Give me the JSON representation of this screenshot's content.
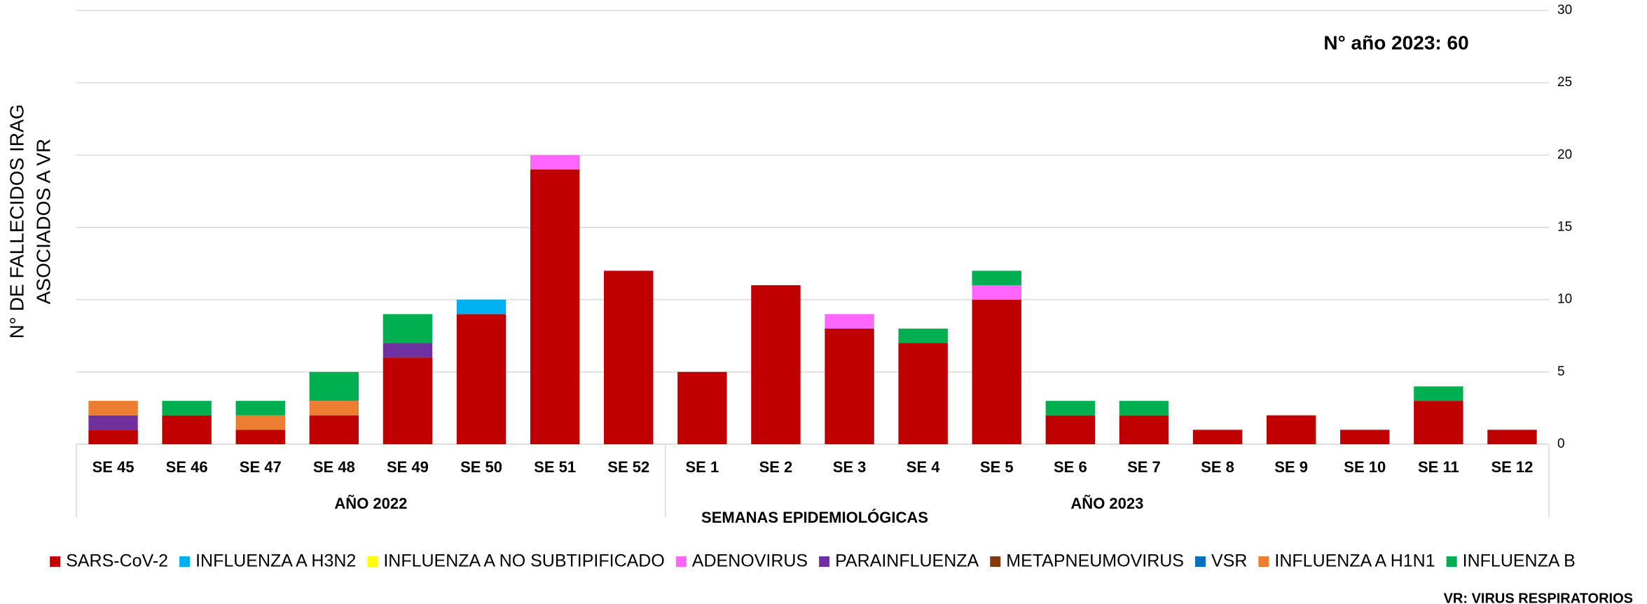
{
  "chart_data": {
    "type": "stacked_bar",
    "y_label": [
      "N° DE FALLECIDOS IRAG",
      "ASOCIADOS A VR"
    ],
    "x_label": "SEMANAS EPIDEMIOLÓGICAS",
    "annotation": "N° año 2023: 60",
    "footnote": "VR: VIRUS RESPIRATORIOS",
    "groups": [
      {
        "label": "AÑO 2022",
        "categories": [
          "SE 45",
          "SE 46",
          "SE 47",
          "SE 48",
          "SE 49",
          "SE 50",
          "SE 51",
          "SE 52"
        ]
      },
      {
        "label": "AÑO 2023",
        "categories": [
          "SE 1",
          "SE 2",
          "SE 3",
          "SE 4",
          "SE 5",
          "SE 6",
          "SE 7",
          "SE 8",
          "SE 9",
          "SE 10",
          "SE 11",
          "SE 12"
        ]
      }
    ],
    "series": [
      {
        "name": "SARS-CoV-2",
        "color": "#c00000",
        "values": [
          1,
          2,
          1,
          2,
          6,
          9,
          19,
          12,
          5,
          11,
          8,
          7,
          10,
          2,
          2,
          1,
          2,
          1,
          3,
          1
        ]
      },
      {
        "name": "INFLUENZA A H3N2",
        "color": "#00b0f0",
        "values": [
          0,
          0,
          0,
          0,
          0,
          1,
          0,
          0,
          0,
          0,
          0,
          0,
          0,
          0,
          0,
          0,
          0,
          0,
          0,
          0
        ]
      },
      {
        "name": "INFLUENZA A NO SUBTIPIFICADO",
        "color": "#ffff00",
        "values": [
          0,
          0,
          0,
          0,
          0,
          0,
          0,
          0,
          0,
          0,
          0,
          0,
          0,
          0,
          0,
          0,
          0,
          0,
          0,
          0
        ]
      },
      {
        "name": "ADENOVIRUS",
        "color": "#ff66ff",
        "values": [
          0,
          0,
          0,
          0,
          0,
          0,
          1,
          0,
          0,
          0,
          1,
          0,
          1,
          0,
          0,
          0,
          0,
          0,
          0,
          0
        ]
      },
      {
        "name": "PARAINFLUENZA",
        "color": "#7030a0",
        "values": [
          1,
          0,
          0,
          0,
          1,
          0,
          0,
          0,
          0,
          0,
          0,
          0,
          0,
          0,
          0,
          0,
          0,
          0,
          0,
          0
        ]
      },
      {
        "name": "METAPNEUMOVIRUS",
        "color": "#843c0c",
        "values": [
          0,
          0,
          0,
          0,
          0,
          0,
          0,
          0,
          0,
          0,
          0,
          0,
          0,
          0,
          0,
          0,
          0,
          0,
          0,
          0
        ]
      },
      {
        "name": "VSR",
        "color": "#0070c0",
        "values": [
          0,
          0,
          0,
          0,
          0,
          0,
          0,
          0,
          0,
          0,
          0,
          0,
          0,
          0,
          0,
          0,
          0,
          0,
          0,
          0
        ]
      },
      {
        "name": "INFLUENZA A H1N1",
        "color": "#ed7d31",
        "values": [
          1,
          0,
          1,
          1,
          0,
          0,
          0,
          0,
          0,
          0,
          0,
          0,
          0,
          0,
          0,
          0,
          0,
          0,
          0,
          0
        ]
      },
      {
        "name": "INFLUENZA B",
        "color": "#00b050",
        "values": [
          0,
          1,
          1,
          2,
          2,
          0,
          0,
          0,
          0,
          0,
          0,
          1,
          1,
          1,
          1,
          0,
          0,
          0,
          1,
          0
        ]
      }
    ],
    "ylim": [
      0,
      30
    ],
    "yticks": [
      0,
      5,
      10,
      15,
      20,
      25,
      30
    ],
    "grid": true
  }
}
